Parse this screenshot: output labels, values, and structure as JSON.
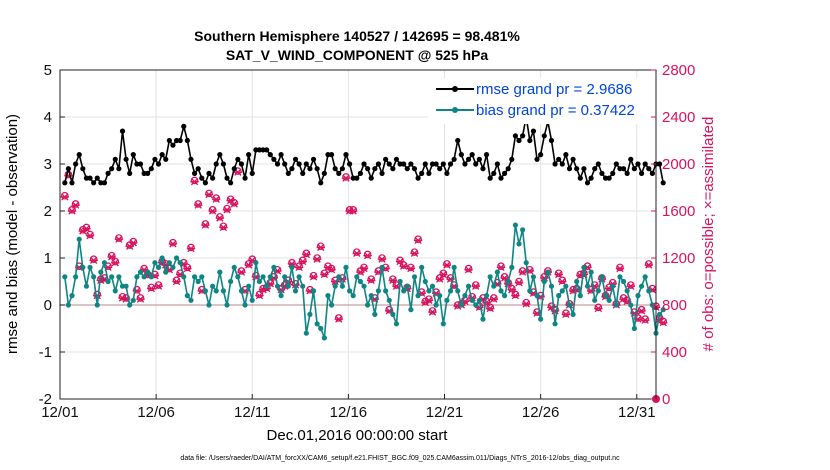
{
  "chart_data": {
    "type": "line",
    "title_line1": "Southern Hemisphere 140527 / 142695 = 98.481%",
    "title_line2": "SAT_V_WIND_COMPONENT @ 525 hPa",
    "xlabel": "Dec.01,2016 00:00:00 start",
    "ylabel_left": "rmse and bias (model - observation)",
    "ylabel_right": "# of obs: o=possible; ×=assimilated",
    "footnote": "data file: /Users/raeder/DAI/ATM_forcXX/CAM6_setup/f.e21.FHIST_BGC.f09_025.CAM6assim.011/Diags_NTrS_2016-12/obs_diag_output.nc",
    "x_ticks": [
      "12/01",
      "12/06",
      "12/11",
      "12/16",
      "12/21",
      "12/26",
      "12/31"
    ],
    "y_left_ticks": [
      "5",
      "4",
      "3",
      "2",
      "1",
      "0",
      "-1",
      "-2"
    ],
    "y_right_ticks": [
      "2800",
      "2400",
      "2000",
      "1600",
      "1200",
      "800",
      "400",
      "0"
    ],
    "ylim_left": [
      -2,
      5
    ],
    "ylim_right": [
      0,
      2800
    ],
    "xlim_days": [
      0,
      31
    ],
    "grid": true,
    "legend_position": "top-right",
    "colors": {
      "rmse": "#000000",
      "bias": "#0f8585",
      "obs": "#d8135e",
      "legend_text": "#0044dd",
      "zero_line": "#c8a0a0"
    },
    "series": [
      {
        "name": "rmse grand pr = 2.9686",
        "values": [
          2.6,
          2.9,
          2.6,
          3.0,
          3.2,
          2.9,
          2.7,
          2.7,
          2.6,
          2.7,
          2.6,
          2.6,
          2.8,
          2.9,
          3.1,
          2.9,
          3.7,
          3.1,
          2.8,
          3.2,
          3.0,
          3.0,
          2.8,
          2.8,
          2.9,
          3.1,
          3.0,
          3.2,
          3.1,
          3.5,
          3.4,
          3.5,
          3.5,
          3.8,
          3.5,
          3.1,
          2.8,
          2.9,
          2.7,
          2.6,
          2.8,
          2.7,
          3.0,
          3.2,
          3.0,
          2.7,
          2.6,
          2.9,
          3.1,
          3.0,
          2.7,
          3.2,
          2.8,
          3.3,
          3.3,
          3.3,
          3.3,
          3.2,
          3.1,
          3.0,
          3.2,
          3.0,
          2.8,
          2.9,
          3.1,
          3.0,
          2.8,
          3.0,
          2.9,
          3.1,
          2.9,
          2.6,
          2.8,
          3.2,
          3.2,
          2.9,
          2.8,
          2.9,
          3.2,
          3.0,
          2.7,
          2.7,
          2.8,
          3.0,
          2.9,
          2.7,
          2.9,
          3.0,
          2.8,
          3.1,
          3.0,
          2.9,
          3.1,
          3.0,
          3.0,
          2.9,
          3.0,
          2.9,
          2.7,
          2.8,
          3.0,
          2.8,
          3.0,
          3.0,
          2.9,
          3.0,
          2.8,
          3.0,
          3.1,
          3.5,
          3.2,
          3.0,
          3.1,
          3.2,
          3.0,
          3.1,
          2.9,
          3.2,
          2.7,
          2.8,
          3.0,
          2.7,
          2.8,
          2.9,
          3.1,
          3.6,
          3.5,
          3.6,
          4.0,
          3.5,
          3.7,
          3.1,
          3.2,
          3.6,
          3.9,
          3.5,
          3.0,
          3.1,
          3.0,
          3.2,
          2.9,
          3.1,
          2.9,
          2.7,
          2.9,
          2.6,
          2.7,
          2.9,
          3.0,
          2.8,
          2.7,
          2.7,
          2.8,
          3.0,
          2.9,
          2.9,
          2.8,
          3.1,
          2.9,
          3.0,
          2.8,
          3.0,
          2.9,
          2.8,
          3.0,
          3.0,
          2.6
        ]
      },
      {
        "name": "bias grand pr = 0.37422",
        "values": [
          0.6,
          0.0,
          0.2,
          0.6,
          1.4,
          0.8,
          0.4,
          0.8,
          0.6,
          0.0,
          0.7,
          0.9,
          0.5,
          0.6,
          0.3,
          0.6,
          0.4,
          0.4,
          0.0,
          0.1,
          0.6,
          0.7,
          0.6,
          0.7,
          0.6,
          0.9,
          0.8,
          1.0,
          0.7,
          0.9,
          0.8,
          1.0,
          0.9,
          0.6,
          0.2,
          0.1,
          0.6,
          0.5,
          0.6,
          0.3,
          0.0,
          0.4,
          0.3,
          0.7,
          0.3,
          0.0,
          0.5,
          0.8,
          0.6,
          0.3,
          0.0,
          0.4,
          0.1,
          0.9,
          0.5,
          0.6,
          0.4,
          0.6,
          0.8,
          0.4,
          0.2,
          0.6,
          0.4,
          0.8,
          0.3,
          0.6,
          0.4,
          -0.6,
          -0.2,
          0.3,
          -0.4,
          -0.5,
          -0.7,
          0.2,
          0.0,
          0.4,
          0.6,
          0.4,
          0.8,
          0.3,
          0.2,
          0.6,
          0.5,
          0.4,
          0.0,
          0.2,
          -0.2,
          0.3,
          0.8,
          0.3,
          0.1,
          -0.2,
          -0.4,
          0.5,
          0.3,
          0.4,
          -0.1,
          0.6,
          0.2,
          0.8,
          0.5,
          0.3,
          0.4,
          0.0,
          0.2,
          -0.4,
          0.1,
          0.3,
          0.8,
          0.3,
          0.0,
          0.2,
          0.4,
          0.1,
          0.0,
          0.1,
          -0.3,
          0.2,
          0.6,
          0.4,
          0.7,
          0.3,
          0.2,
          0.5,
          0.8,
          1.7,
          1.3,
          1.6,
          0.9,
          0.3,
          0.6,
          0.2,
          -0.3,
          0.5,
          0.7,
          0.4,
          -0.4,
          0.2,
          0.3,
          0.4,
          0.0,
          -0.2,
          0.5,
          0.2,
          0.8,
          0.4,
          0.7,
          0.1,
          0.3,
          0.6,
          0.2,
          0.1,
          0.4,
          0.0,
          0.6,
          0.5,
          0.3,
          0.0,
          -0.5,
          0.2,
          0.4,
          0.6,
          0.3,
          0.0,
          -0.6,
          -0.2,
          -0.1
        ]
      },
      {
        "name": "assimilated",
        "values": [
          1720,
          1900,
          1600,
          1650,
          1120,
          1430,
          1450,
          1390,
          1180,
          880,
          1010,
          1020,
          1120,
          1210,
          1160,
          1360,
          860,
          850,
          1300,
          1330,
          920,
          850,
          1100,
          1050,
          940,
          1050,
          960,
          1160,
          1140,
          1100,
          1320,
          1000,
          1060,
          1150,
          1110,
          1280,
          1850,
          1650,
          920,
          1480,
          1740,
          1600,
          1700,
          1540,
          1460,
          1610,
          1690,
          1660,
          1930,
          1080,
          920,
          1140,
          1180,
          1040,
          880,
          930,
          940,
          980,
          1030,
          1090,
          930,
          960,
          1000,
          1150,
          970,
          1120,
          1170,
          1230,
          920,
          1040,
          1190,
          1290,
          1060,
          1120,
          1100,
          1000,
          680,
          1020,
          1880,
          1600,
          1600,
          1240,
          1080,
          1110,
          1220,
          1010,
          850,
          1080,
          1190,
          1110,
          750,
          1010,
          960,
          1170,
          1130,
          940,
          1110,
          1240,
          1350,
          900,
          820,
          840,
          740,
          900,
          1020,
          1060,
          1140,
          1020,
          960,
          790,
          800,
          830,
          1100,
          860,
          960,
          780,
          850,
          820,
          770,
          850,
          980,
          1120,
          1030,
          980,
          930,
          880,
          990,
          1080,
          810,
          1090,
          900,
          730,
          870,
          1030,
          1080,
          780,
          750,
          1060,
          1000,
          720,
          800,
          920,
          930,
          1050,
          1060,
          1120,
          920,
          960,
          770,
          1020,
          870,
          940,
          980,
          800,
          1110,
          850,
          830,
          960,
          730,
          680,
          750,
          670,
          1140,
          930,
          780,
          680,
          650
        ]
      },
      {
        "name": "possible",
        "values": [
          1730,
          1910,
          1610,
          1660,
          1130,
          1440,
          1460,
          1400,
          1190,
          890,
          1020,
          1030,
          1130,
          1220,
          1170,
          1370,
          870,
          860,
          1310,
          1340,
          930,
          860,
          1110,
          1060,
          950,
          1060,
          970,
          1170,
          1150,
          1110,
          1330,
          1010,
          1070,
          1160,
          1120,
          1290,
          1860,
          1660,
          930,
          1490,
          1750,
          1610,
          1710,
          1550,
          1470,
          1620,
          1700,
          1670,
          1940,
          1090,
          930,
          1150,
          1190,
          1050,
          890,
          940,
          950,
          990,
          1040,
          1100,
          940,
          970,
          1010,
          1160,
          980,
          1130,
          1180,
          1240,
          930,
          1050,
          1200,
          1300,
          1070,
          1130,
          1110,
          1010,
          690,
          1030,
          1890,
          1610,
          1610,
          1250,
          1090,
          1120,
          1230,
          1020,
          860,
          1090,
          1200,
          1120,
          760,
          1020,
          970,
          1180,
          1140,
          950,
          1120,
          1250,
          1360,
          910,
          830,
          850,
          750,
          910,
          1030,
          1070,
          1150,
          1030,
          970,
          800,
          810,
          840,
          1110,
          870,
          970,
          790,
          860,
          830,
          780,
          860,
          990,
          1130,
          1040,
          990,
          940,
          890,
          1000,
          1090,
          820,
          1100,
          910,
          740,
          880,
          1040,
          1090,
          790,
          760,
          1070,
          1010,
          730,
          810,
          930,
          940,
          1060,
          1070,
          1130,
          930,
          970,
          780,
          1030,
          880,
          950,
          990,
          810,
          1120,
          860,
          840,
          970,
          740,
          690,
          760,
          680,
          1150,
          940,
          790,
          690,
          660
        ]
      }
    ]
  }
}
